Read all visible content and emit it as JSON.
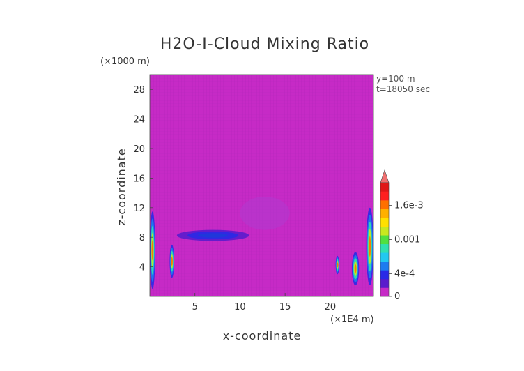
{
  "chart_data": {
    "type": "heatmap",
    "title": "H2O-I-Cloud Mixing Ratio",
    "xlabel": "x-coordinate",
    "ylabel": "z-coordinate",
    "x_unit": "(×1E4 m)",
    "y_unit": "(×1000 m)",
    "xlim": [
      0,
      24.8
    ],
    "ylim": [
      0,
      30
    ],
    "x_ticks": [
      5,
      10,
      15,
      20
    ],
    "y_ticks": [
      4,
      8,
      12,
      16,
      20,
      24,
      28
    ],
    "annotations": [
      "y=100 m",
      "t=18050 sec"
    ],
    "colorbar": {
      "range": [
        0,
        0.002
      ],
      "tick_labels": [
        "0",
        "4e-4",
        "0.001",
        "1.6e-3"
      ],
      "tick_values": [
        0,
        0.0004,
        0.001,
        0.0016
      ],
      "colors": [
        "#c62ac6",
        "#5a1ccc",
        "#2a2ae6",
        "#1e7cf0",
        "#22c8f0",
        "#30e0b0",
        "#50e040",
        "#c8e820",
        "#ffe000",
        "#ffb000",
        "#ff7000",
        "#ff2020",
        "#e01818"
      ],
      "extend": "max"
    },
    "background_value": 0,
    "features": [
      {
        "x": [
          0.0,
          0.6
        ],
        "z": [
          1.0,
          11.5
        ],
        "level": "low-high"
      },
      {
        "x": [
          2.2,
          2.7
        ],
        "z": [
          2.5,
          7.0
        ],
        "level": "low-high"
      },
      {
        "x": [
          3.0,
          11.0
        ],
        "z": [
          7.5,
          9.0
        ],
        "level": "low"
      },
      {
        "x": [
          10.0,
          15.5
        ],
        "z": [
          9.0,
          13.5
        ],
        "level": "trace"
      },
      {
        "x": [
          20.6,
          21.0
        ],
        "z": [
          3.0,
          5.5
        ],
        "level": "low-high"
      },
      {
        "x": [
          22.4,
          23.2
        ],
        "z": [
          1.5,
          6.0
        ],
        "level": "low-high"
      },
      {
        "x": [
          24.0,
          24.8
        ],
        "z": [
          1.5,
          12.0
        ],
        "level": "low-high"
      }
    ]
  }
}
